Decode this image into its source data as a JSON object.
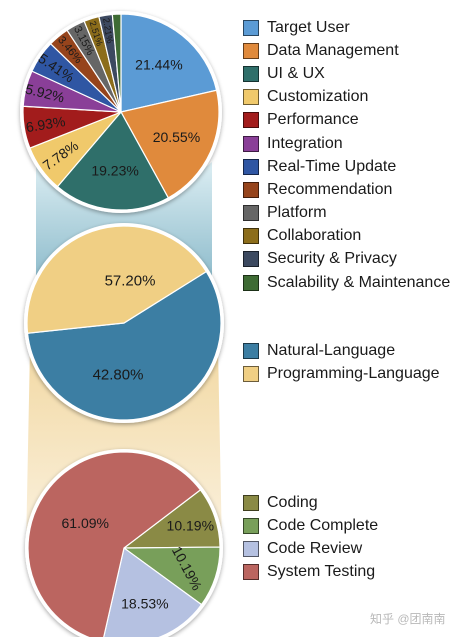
{
  "chart_data": [
    {
      "type": "pie",
      "categories": [
        "Target User",
        "Data Management",
        "UI & UX",
        "Customization",
        "Performance",
        "Integration",
        "Real-Time Update",
        "Recommendation",
        "Platform",
        "Collaboration",
        "Security & Privacy",
        "Scalability & Maintenance"
      ],
      "values": [
        21.44,
        20.55,
        19.23,
        7.78,
        6.93,
        5.92,
        5.41,
        3.46,
        3.15,
        2.51,
        2.21,
        1.41
      ],
      "labels": [
        "21.44%",
        "20.55%",
        "19.23%",
        "7.78%",
        "6.93%",
        "5.92%",
        "5.41%",
        "3.46%",
        "3.15%",
        "2.51%",
        "2.21%",
        ""
      ],
      "colors": [
        "#5b9bd5",
        "#e08a3c",
        "#2f6f6a",
        "#f0c96b",
        "#a21c1c",
        "#8a3f98",
        "#2f56a3",
        "#96441c",
        "#666666",
        "#8c6d1b",
        "#3c4960",
        "#3e6b34"
      ],
      "legend_position": "right"
    },
    {
      "type": "pie",
      "categories": [
        "Natural-Language",
        "Programming-Language"
      ],
      "values": [
        57.2,
        42.8
      ],
      "labels": [
        "57.20%",
        "42.80%"
      ],
      "colors": [
        "#3c7ea3",
        "#f0cf84"
      ],
      "legend_position": "right"
    },
    {
      "type": "pie",
      "categories": [
        "Coding",
        "Code Complete",
        "Code Review",
        "System Testing"
      ],
      "values": [
        10.19,
        10.19,
        18.53,
        61.09
      ],
      "labels": [
        "10.19%",
        "10.19%",
        "18.53%",
        "61.09%"
      ],
      "colors": [
        "#8a8a45",
        "#789f5a",
        "#b5c1e1",
        "#bb6560"
      ],
      "legend_position": "right"
    }
  ],
  "watermark": "知乎 @团南南"
}
